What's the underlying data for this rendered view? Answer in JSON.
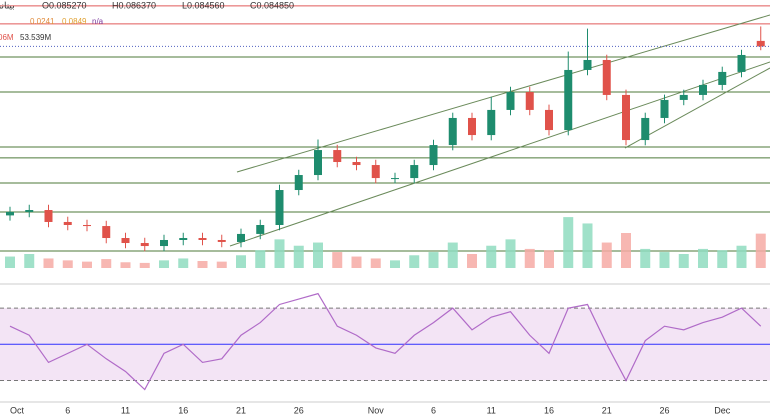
{
  "header": {
    "symbol": "بينانس",
    "ohlc": [
      "O0.085270",
      "H0.086370",
      "L0.084560",
      "C0.084850"
    ],
    "indicators": [
      "0.0241",
      "0.0849",
      "n/a"
    ],
    "volume_labels": [
      "06M",
      "53.539M"
    ]
  },
  "chart_data": {
    "type": "candlestick",
    "categories": [
      "Oct",
      null,
      null,
      "6",
      null,
      null,
      "11",
      null,
      null,
      "16",
      null,
      null,
      "21",
      null,
      null,
      "26",
      null,
      null,
      null,
      "Nov",
      null,
      null,
      "6",
      null,
      null,
      "11",
      null,
      null,
      "16",
      null,
      null,
      "21",
      null,
      null,
      "26",
      null,
      null,
      "Dec",
      null,
      null
    ],
    "open": [
      0.072,
      0.07226,
      0.07241,
      0.0715,
      0.07127,
      0.07119,
      0.07028,
      0.0699,
      0.06967,
      0.07013,
      0.07028,
      0.07013,
      0.06998,
      0.07059,
      0.07127,
      0.07393,
      0.07507,
      0.07697,
      0.07606,
      0.07583,
      0.07484,
      0.07484,
      0.07583,
      0.07735,
      0.07941,
      0.07811,
      0.08002,
      0.08138,
      0.08002,
      0.07849,
      0.08306,
      0.08382,
      0.08116,
      0.07773,
      0.07941,
      0.08078,
      0.08116,
      0.08192,
      0.08291,
      0.08527
    ],
    "high": [
      0.07266,
      0.07281,
      0.07281,
      0.0719,
      0.07167,
      0.07159,
      0.07068,
      0.0703,
      0.07053,
      0.07068,
      0.07068,
      0.07053,
      0.07099,
      0.07167,
      0.07433,
      0.07547,
      0.07777,
      0.07737,
      0.07646,
      0.07623,
      0.07524,
      0.07623,
      0.07775,
      0.07981,
      0.07981,
      0.08102,
      0.08178,
      0.08178,
      0.08042,
      0.08446,
      0.0862,
      0.08422,
      0.08156,
      0.07981,
      0.08118,
      0.08156,
      0.08232,
      0.08331,
      0.0846,
      0.08637
    ],
    "low": [
      0.0716,
      0.07186,
      0.0711,
      0.07087,
      0.07079,
      0.06988,
      0.0695,
      0.06927,
      0.06927,
      0.06973,
      0.06973,
      0.06958,
      0.06958,
      0.07019,
      0.07087,
      0.07353,
      0.07467,
      0.07566,
      0.07543,
      0.07444,
      0.07444,
      0.07444,
      0.07543,
      0.07695,
      0.07771,
      0.07771,
      0.07962,
      0.07962,
      0.07809,
      0.07809,
      0.08266,
      0.08076,
      0.07733,
      0.07733,
      0.07901,
      0.08038,
      0.08076,
      0.08152,
      0.08251,
      0.08456
    ],
    "close": [
      0.07226,
      0.07241,
      0.0715,
      0.07127,
      0.07119,
      0.07028,
      0.0699,
      0.06967,
      0.07013,
      0.07028,
      0.07013,
      0.06998,
      0.07059,
      0.07127,
      0.07393,
      0.07507,
      0.07697,
      0.07606,
      0.07583,
      0.07484,
      0.07484,
      0.07583,
      0.07735,
      0.07941,
      0.07811,
      0.08002,
      0.08138,
      0.08002,
      0.07849,
      0.08306,
      0.08382,
      0.08116,
      0.07773,
      0.07941,
      0.08078,
      0.08116,
      0.08192,
      0.08291,
      0.0842,
      0.08485
    ],
    "ylim": [
      0.068,
      0.088
    ],
    "up_color": "#1e8c6e",
    "down_color": "#e0524a",
    "levels": {
      "red": [
        0.08793,
        0.08656
      ],
      "green": [
        0.08405,
        0.08138,
        0.0772,
        0.07637,
        0.07446,
        0.07226,
        0.06929
      ]
    },
    "volume": {
      "values": [
        18,
        22,
        15,
        12,
        10,
        14,
        9,
        8,
        12,
        15,
        11,
        10,
        20,
        28,
        45,
        35,
        40,
        25,
        18,
        15,
        12,
        20,
        25,
        40,
        22,
        35,
        45,
        30,
        28,
        80,
        70,
        40,
        55,
        30,
        25,
        22,
        30,
        28,
        35,
        54
      ],
      "ylim": [
        0,
        110
      ],
      "up_color": "#8fdcbf",
      "down_color": "#f6aaa5"
    },
    "rsi": {
      "values": [
        60,
        55,
        40,
        45,
        50,
        42,
        35,
        25,
        45,
        50,
        40,
        42,
        55,
        62,
        72,
        75,
        78,
        60,
        55,
        48,
        45,
        55,
        62,
        70,
        58,
        65,
        68,
        55,
        45,
        70,
        72,
        50,
        30,
        52,
        60,
        58,
        62,
        65,
        70,
        60
      ],
      "ylim": [
        22,
        80
      ],
      "levels": [
        70,
        50,
        30
      ],
      "color": "#b06bc8"
    }
  }
}
